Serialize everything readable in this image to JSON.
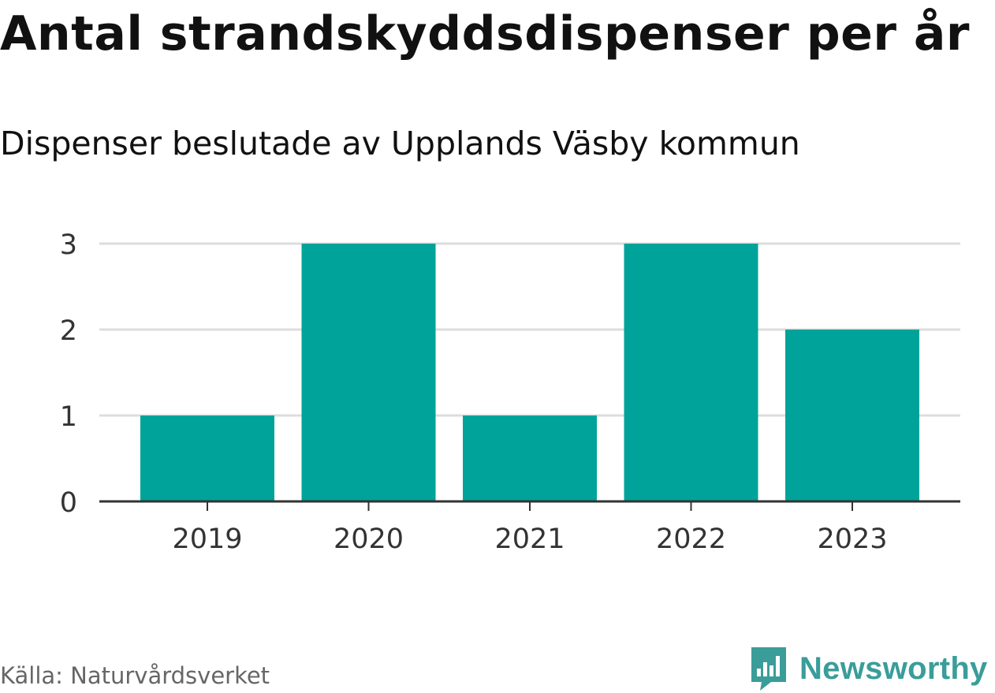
{
  "header": {
    "title": "Antal strandskyddsdispenser per år",
    "subtitle": "Dispenser beslutade av Upplands Väsby kommun"
  },
  "footer": {
    "source": "Källa: Naturvårdsverket",
    "brand": "Newsworthy"
  },
  "colors": {
    "bar": "#00a39a",
    "grid": "#dddddd",
    "axis": "#333333",
    "brand": "#3a9d9a"
  },
  "chart_data": {
    "type": "bar",
    "title": "Antal strandskyddsdispenser per år",
    "subtitle": "Dispenser beslutade av Upplands Väsby kommun",
    "categories": [
      "2019",
      "2020",
      "2021",
      "2022",
      "2023"
    ],
    "values": [
      1,
      3,
      1,
      3,
      2
    ],
    "xlabel": "",
    "ylabel": "",
    "ylim": [
      0,
      3
    ],
    "yticks": [
      0,
      1,
      2,
      3
    ],
    "grid": true
  }
}
